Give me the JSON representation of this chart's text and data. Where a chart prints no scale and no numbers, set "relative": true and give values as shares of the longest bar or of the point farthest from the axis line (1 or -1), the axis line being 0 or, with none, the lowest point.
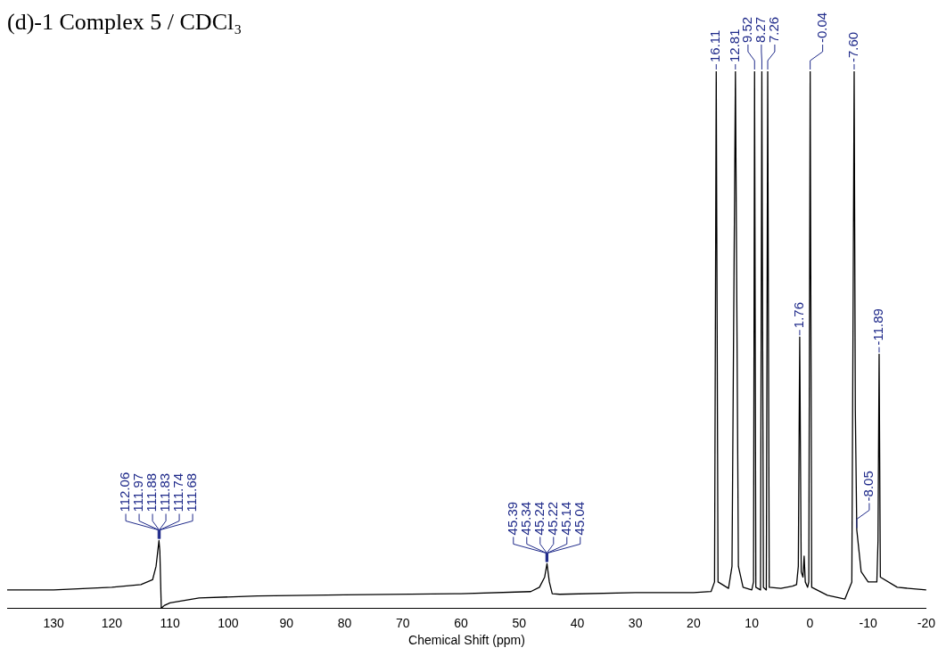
{
  "chart_data": {
    "type": "line",
    "relative": true,
    "title": "(d)-1 Complex 5 / CDCl₃",
    "xlabel": "Chemical Shift (ppm)",
    "xlim": [
      138,
      -20
    ],
    "xticks": [
      130,
      120,
      110,
      100,
      90,
      80,
      70,
      60,
      50,
      40,
      30,
      20,
      10,
      0,
      -10,
      -20
    ],
    "series": [
      {
        "color": "#000000",
        "x": [
          138,
          130,
          120,
          115,
          113,
          112.4,
          111.9,
          111.75,
          111.5,
          111,
          110,
          105,
          95,
          80,
          60,
          48,
          46.5,
          45.6,
          45.2,
          44.8,
          44.3,
          43,
          30,
          20,
          17,
          16.4,
          16.11,
          15.8,
          14,
          13.4,
          12.81,
          12.3,
          11.5,
          10,
          9.7,
          9.52,
          9.3,
          8.5,
          8.27,
          8.0,
          7.5,
          7.26,
          7.0,
          5,
          3,
          2.3,
          2.0,
          1.76,
          1.5,
          1.2,
          1.0,
          0.8,
          0.4,
          0.2,
          -0.04,
          -0.3,
          -3,
          -6,
          -7.2,
          -7.4,
          -7.6,
          -7.8,
          -8.05,
          -8.8,
          -10,
          -11.5,
          -11.7,
          -11.89,
          -12.1,
          -15,
          -20
        ],
        "values": [
          0.034,
          0.034,
          0.039,
          0.044,
          0.053,
          0.078,
          0.126,
          0.107,
          0,
          0.005,
          0.01,
          0.019,
          0.023,
          0.025,
          0.027,
          0.031,
          0.039,
          0.058,
          0.083,
          0.049,
          0.027,
          0.026,
          0.029,
          0.029,
          0.031,
          0.049,
          1,
          0.049,
          0.037,
          0.078,
          1,
          0.078,
          0.039,
          0.034,
          0.049,
          1,
          0.039,
          0.034,
          1,
          0.039,
          0.034,
          1,
          0.039,
          0.037,
          0.041,
          0.044,
          0.078,
          0.505,
          0.068,
          0.058,
          0.097,
          0.049,
          0.039,
          0.049,
          1,
          0.039,
          0.024,
          0.017,
          0.049,
          0.515,
          1,
          0.369,
          0.146,
          0.068,
          0.049,
          0.049,
          0.126,
          0.473,
          0.058,
          0.039,
          0.034
        ]
      }
    ],
    "annotations": [
      {
        "text": "112.06",
        "x": 112.06,
        "y": 0.126
      },
      {
        "text": "111.97",
        "x": 111.97,
        "y": 0.126
      },
      {
        "text": "111.88",
        "x": 111.88,
        "y": 0.126
      },
      {
        "text": "111.83",
        "x": 111.83,
        "y": 0.126
      },
      {
        "text": "111.74",
        "x": 111.74,
        "y": 0.126
      },
      {
        "text": "111.68",
        "x": 111.68,
        "y": 0.126
      },
      {
        "text": "45.39",
        "x": 45.39,
        "y": 0.083
      },
      {
        "text": "45.34",
        "x": 45.34,
        "y": 0.083
      },
      {
        "text": "45.24",
        "x": 45.24,
        "y": 0.083
      },
      {
        "text": "45.22",
        "x": 45.22,
        "y": 0.083
      },
      {
        "text": "45.14",
        "x": 45.14,
        "y": 0.083
      },
      {
        "text": "45.04",
        "x": 45.04,
        "y": 0.083
      },
      {
        "text": "16.11",
        "x": 16.11,
        "y": 1
      },
      {
        "text": "12.81",
        "x": 12.81,
        "y": 1
      },
      {
        "text": "9.52",
        "x": 9.52,
        "y": 1
      },
      {
        "text": "8.27",
        "x": 8.27,
        "y": 1
      },
      {
        "text": "7.26",
        "x": 7.26,
        "y": 1
      },
      {
        "text": "1.76",
        "x": 1.76,
        "y": 0.505
      },
      {
        "text": "-0.04",
        "x": -0.04,
        "y": 1
      },
      {
        "text": "-7.60",
        "x": -7.6,
        "y": 1
      },
      {
        "text": "-8.05",
        "x": -8.05,
        "y": 0.146
      },
      {
        "text": "-11.89",
        "x": -11.89,
        "y": 0.473
      }
    ]
  }
}
